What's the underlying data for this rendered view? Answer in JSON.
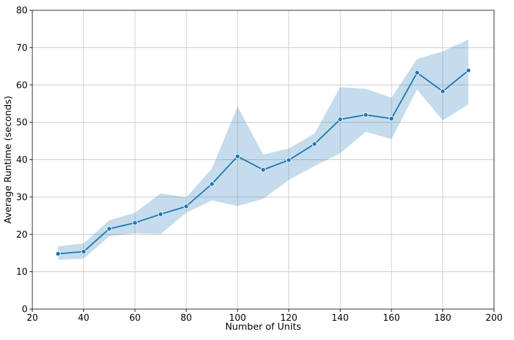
{
  "chart_data": {
    "type": "line",
    "title": "",
    "xlabel": "Number of Units",
    "ylabel": "Average Runtime (seconds)",
    "xlim": [
      20,
      200
    ],
    "ylim": [
      0,
      80
    ],
    "xticks": [
      20,
      40,
      60,
      80,
      100,
      120,
      140,
      160,
      180,
      200
    ],
    "yticks": [
      0,
      10,
      20,
      30,
      40,
      50,
      60,
      70,
      80
    ],
    "grid": true,
    "legend": "none",
    "x": [
      30,
      40,
      50,
      60,
      70,
      80,
      90,
      100,
      110,
      120,
      130,
      140,
      150,
      160,
      170,
      180,
      190
    ],
    "series": [
      {
        "name": "average-runtime",
        "values": [
          14.8,
          15.4,
          21.5,
          23.1,
          25.4,
          27.5,
          33.5,
          40.9,
          37.3,
          39.9,
          44.2,
          50.8,
          52.0,
          51.0,
          63.3,
          58.3,
          63.9
        ]
      }
    ],
    "band": {
      "lower": [
        13.2,
        13.5,
        19.5,
        20.3,
        20.1,
        25.8,
        29.1,
        27.6,
        29.5,
        34.6,
        38.3,
        41.7,
        47.5,
        45.5,
        58.8,
        50.5,
        54.8
      ],
      "upper": [
        16.8,
        17.6,
        23.8,
        25.8,
        31.0,
        29.9,
        37.6,
        54.2,
        41.4,
        43.0,
        47.0,
        59.4,
        59.0,
        56.6,
        67.0,
        69.0,
        72.2
      ]
    },
    "colors": {
      "line": "#1f77b4",
      "marker": "#1f77b4",
      "marker_edge": "#ffffff",
      "band_fill": "#1f77b4",
      "band_opacity": 0.26,
      "grid": "#cccccc",
      "spine": "#2b2b2b",
      "tick": "#000000"
    }
  }
}
